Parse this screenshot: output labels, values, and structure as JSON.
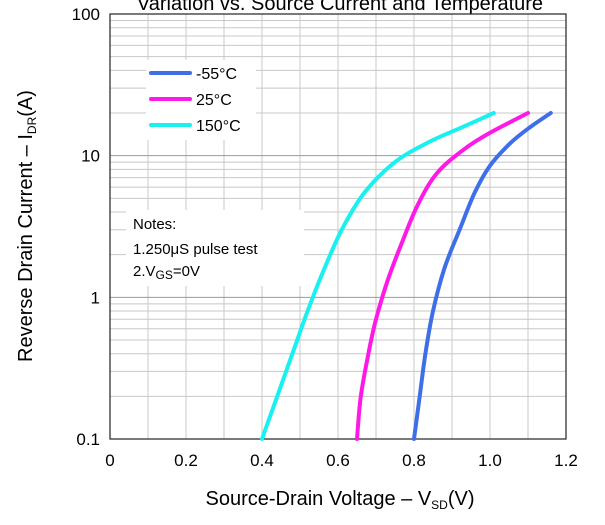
{
  "chart_data": {
    "type": "line",
    "title": "Variation vs. Source Current and Temperature",
    "xlabel": {
      "main": "Source-Drain Voltage – V",
      "sub": "SD",
      "unit": "(V)"
    },
    "ylabel": {
      "main": "Reverse Drain Current – I",
      "sub": "DR",
      "unit": "(A)"
    },
    "xlim": [
      0,
      1.2
    ],
    "ylim": [
      0.1,
      100
    ],
    "yscale": "log",
    "grid": true,
    "legend_position": "top-left",
    "x_ticks": [
      "0",
      "0.2",
      "0.4",
      "0.6",
      "0.8",
      "1.0",
      "1.2"
    ],
    "y_ticks": [
      "0.1",
      "1",
      "10",
      "100"
    ],
    "series": [
      {
        "name": "-55°C",
        "color": "#3f6fe8",
        "x": [
          0.8,
          0.815,
          0.83,
          0.85,
          0.88,
          0.92,
          0.96,
          1.0,
          1.05,
          1.1,
          1.16
        ],
        "y": [
          0.1,
          0.2,
          0.4,
          0.8,
          1.6,
          3.0,
          5.5,
          8.5,
          12,
          15.5,
          20
        ]
      },
      {
        "name": "25°C",
        "color": "#ff19e6",
        "x": [
          0.65,
          0.66,
          0.68,
          0.7,
          0.73,
          0.77,
          0.81,
          0.86,
          0.93,
          1.0,
          1.1
        ],
        "y": [
          0.1,
          0.2,
          0.4,
          0.7,
          1.3,
          2.5,
          4.5,
          7.5,
          11,
          14.5,
          20
        ]
      },
      {
        "name": "150°C",
        "color": "#19f0f0",
        "x": [
          0.4,
          0.44,
          0.48,
          0.52,
          0.56,
          0.61,
          0.67,
          0.75,
          0.84,
          0.93,
          1.01
        ],
        "y": [
          0.1,
          0.2,
          0.4,
          0.8,
          1.5,
          3.0,
          5.5,
          9.0,
          12.5,
          16,
          20
        ]
      }
    ],
    "notes": {
      "heading": "Notes:",
      "line1": "1.250μS pulse test",
      "line2_prefix": "2.V",
      "line2_sub": "GS",
      "line2_suffix": "=0V"
    }
  }
}
